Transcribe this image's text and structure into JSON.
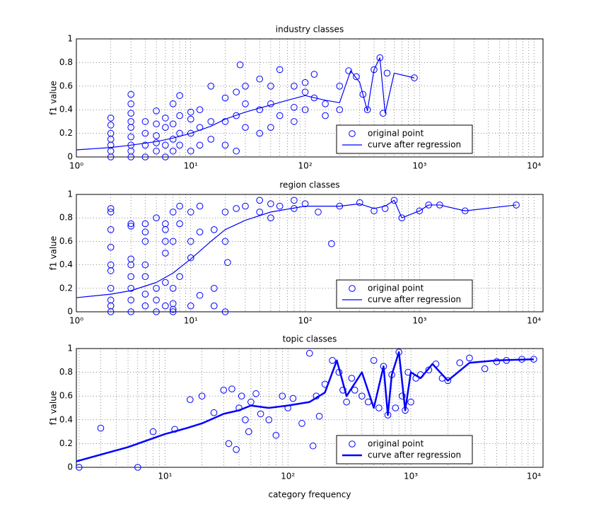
{
  "chart_data": [
    {
      "type": "scatter",
      "title": "industry classes",
      "y_label": "f1 value",
      "xscale": "log",
      "grid": true,
      "legend": "lower right",
      "xlim": [
        1,
        12000
      ],
      "ylim": [
        0,
        1
      ],
      "xticks": [
        {
          "value": 1,
          "label": "10⁰"
        },
        {
          "value": 10,
          "label": "10¹"
        },
        {
          "value": 100,
          "label": "10²"
        },
        {
          "value": 1000,
          "label": "10³"
        },
        {
          "value": 10000,
          "label": "10⁴"
        }
      ],
      "yticks": [
        0,
        0.2,
        0.4,
        0.6,
        0.8,
        1
      ],
      "series": [
        {
          "name": "original point",
          "color": "#0000ff",
          "mode": "markers",
          "x": [
            2,
            2,
            2,
            2,
            2,
            2,
            2,
            3,
            3,
            3,
            3,
            3,
            3,
            3,
            3,
            3,
            4,
            4,
            4,
            4,
            5,
            5,
            5,
            5,
            5,
            6,
            6,
            6,
            6,
            7,
            7,
            7,
            7,
            8,
            8,
            8,
            8,
            10,
            10,
            10,
            10,
            12,
            12,
            12,
            15,
            15,
            15,
            20,
            20,
            20,
            25,
            25,
            25,
            27,
            30,
            30,
            30,
            40,
            40,
            40,
            50,
            50,
            50,
            60,
            60,
            80,
            80,
            80,
            100,
            100,
            100,
            120,
            120,
            150,
            150,
            200,
            200,
            240,
            280,
            320,
            350,
            400,
            450,
            480,
            520,
            900
          ],
          "values": [
            0,
            0.05,
            0.1,
            0.15,
            0.2,
            0.27,
            0.33,
            0,
            0.05,
            0.1,
            0.17,
            0.25,
            0.3,
            0.37,
            0.45,
            0.53,
            0,
            0.1,
            0.2,
            0.3,
            0.05,
            0.12,
            0.18,
            0.28,
            0.39,
            0,
            0.1,
            0.25,
            0.33,
            0.05,
            0.15,
            0.28,
            0.45,
            0.1,
            0.2,
            0.35,
            0.52,
            0.05,
            0.2,
            0.32,
            0.38,
            0.1,
            0.25,
            0.4,
            0.6,
            0.3,
            0.15,
            0.5,
            0.1,
            0.3,
            0.05,
            0.35,
            0.55,
            0.78,
            0.6,
            0.45,
            0.25,
            0.66,
            0.4,
            0.2,
            0.6,
            0.25,
            0.45,
            0.74,
            0.35,
            0.42,
            0.6,
            0.3,
            0.55,
            0.4,
            0.63,
            0.7,
            0.5,
            0.45,
            0.35,
            0.4,
            0.6,
            0.73,
            0.68,
            0.53,
            0.4,
            0.74,
            0.84,
            0.37,
            0.71,
            0.67
          ]
        },
        {
          "name": "curve after regression",
          "color": "#0000ff",
          "mode": "line",
          "linewidth": 1.2,
          "x": [
            1,
            2,
            3,
            5,
            7,
            10,
            15,
            20,
            30,
            50,
            70,
            100,
            150,
            200,
            250,
            300,
            350,
            400,
            450,
            500,
            600,
            900
          ],
          "values": [
            0.06,
            0.08,
            0.1,
            0.13,
            0.16,
            0.2,
            0.26,
            0.32,
            0.38,
            0.44,
            0.48,
            0.52,
            0.48,
            0.46,
            0.73,
            0.63,
            0.39,
            0.74,
            0.84,
            0.37,
            0.71,
            0.67
          ]
        }
      ]
    },
    {
      "type": "scatter",
      "title": "region classes",
      "y_label": "f1 value",
      "xscale": "log",
      "grid": true,
      "legend": "lower right",
      "xlim": [
        1,
        12000
      ],
      "ylim": [
        0,
        1
      ],
      "xticks": [
        {
          "value": 1,
          "label": "10⁰"
        },
        {
          "value": 10,
          "label": "10¹"
        },
        {
          "value": 100,
          "label": "10²"
        },
        {
          "value": 1000,
          "label": "10³"
        },
        {
          "value": 10000,
          "label": "10⁴"
        }
      ],
      "yticks": [
        0,
        0.2,
        0.4,
        0.6,
        0.8,
        1
      ],
      "series": [
        {
          "name": "original point",
          "color": "#0000ff",
          "mode": "markers",
          "x": [
            2,
            2,
            2,
            2,
            2,
            2,
            2,
            2,
            2,
            2,
            3,
            3,
            3,
            3,
            3,
            3,
            3,
            3,
            4,
            4,
            4,
            4,
            4,
            4,
            4,
            5,
            5,
            5,
            5,
            6,
            6,
            6,
            6,
            6,
            6,
            7,
            7,
            7,
            7,
            7,
            7,
            8,
            8,
            8,
            10,
            10,
            10,
            10,
            12,
            12,
            12,
            16,
            16,
            16,
            20,
            20,
            20,
            21,
            25,
            30,
            40,
            40,
            50,
            50,
            60,
            80,
            80,
            100,
            130,
            170,
            200,
            300,
            400,
            500,
            600,
            700,
            1000,
            1200,
            1500,
            2500,
            7000
          ],
          "values": [
            0,
            0.05,
            0.1,
            0.2,
            0.35,
            0.4,
            0.55,
            0.7,
            0.85,
            0.88,
            0,
            0.1,
            0.2,
            0.3,
            0.4,
            0.45,
            0.73,
            0.75,
            0.05,
            0.15,
            0.3,
            0.4,
            0.6,
            0.68,
            0.75,
            0,
            0.1,
            0.2,
            0.8,
            0.05,
            0.25,
            0.5,
            0.6,
            0.7,
            0.75,
            0,
            0.02,
            0.07,
            0.2,
            0.6,
            0.85,
            0.3,
            0.9,
            0.75,
            0.05,
            0.46,
            0.6,
            0.85,
            0.14,
            0.68,
            0.9,
            0.05,
            0.2,
            0.7,
            0,
            0.6,
            0.85,
            0.42,
            0.88,
            0.9,
            0.95,
            0.85,
            0.92,
            0.8,
            0.9,
            0.88,
            0.95,
            0.92,
            0.85,
            0.58,
            0.9,
            0.93,
            0.86,
            0.88,
            0.95,
            0.8,
            0.86,
            0.91,
            0.91,
            0.86,
            0.91
          ]
        },
        {
          "name": "curve after regression",
          "color": "#0000ff",
          "mode": "line",
          "linewidth": 1.2,
          "x": [
            1,
            2,
            3,
            5,
            7,
            10,
            15,
            20,
            30,
            50,
            100,
            200,
            300,
            400,
            500,
            600,
            700,
            1000,
            1200,
            1500,
            2500,
            7000
          ],
          "values": [
            0.12,
            0.15,
            0.18,
            0.25,
            0.33,
            0.45,
            0.6,
            0.7,
            0.78,
            0.85,
            0.9,
            0.9,
            0.92,
            0.88,
            0.9,
            0.95,
            0.8,
            0.86,
            0.91,
            0.91,
            0.86,
            0.91
          ]
        }
      ]
    },
    {
      "type": "scatter",
      "title": "topic classes",
      "y_label": "f1 value",
      "x_label": "category frequency",
      "xscale": "log",
      "grid": true,
      "legend": "lower right",
      "xlim": [
        1.9,
        11900
      ],
      "ylim": [
        0,
        1
      ],
      "xticks": [
        {
          "value": 10,
          "label": "10¹"
        },
        {
          "value": 100,
          "label": "10²"
        },
        {
          "value": 1000,
          "label": "10³"
        },
        {
          "value": 10000,
          "label": "10⁴"
        }
      ],
      "yticks": [
        0,
        0.2,
        0.4,
        0.6,
        0.8,
        1
      ],
      "series": [
        {
          "name": "original point",
          "color": "#0000ff",
          "mode": "markers",
          "x": [
            2,
            3,
            6,
            8,
            12,
            16,
            20,
            25,
            30,
            33,
            35,
            38,
            40,
            42,
            45,
            48,
            50,
            55,
            60,
            70,
            80,
            90,
            100,
            110,
            130,
            150,
            160,
            170,
            180,
            200,
            230,
            260,
            280,
            300,
            330,
            350,
            400,
            450,
            500,
            550,
            600,
            650,
            700,
            750,
            800,
            850,
            900,
            950,
            1000,
            1100,
            1200,
            1400,
            1600,
            1800,
            2000,
            2500,
            3000,
            4000,
            5000,
            6000,
            8000,
            10000
          ],
          "values": [
            0,
            0.33,
            0,
            0.3,
            0.32,
            0.57,
            0.6,
            0.46,
            0.65,
            0.2,
            0.66,
            0.15,
            0.5,
            0.6,
            0.4,
            0.3,
            0.55,
            0.62,
            0.45,
            0.4,
            0.27,
            0.6,
            0.5,
            0.58,
            0.37,
            0.96,
            0.18,
            0.6,
            0.43,
            0.7,
            0.9,
            0.8,
            0.65,
            0.55,
            0.75,
            0.65,
            0.6,
            0.55,
            0.9,
            0.5,
            0.85,
            0.44,
            0.78,
            0.5,
            0.97,
            0.6,
            0.48,
            0.8,
            0.55,
            0.75,
            0.78,
            0.82,
            0.87,
            0.75,
            0.73,
            0.88,
            0.92,
            0.83,
            0.89,
            0.9,
            0.91,
            0.91
          ]
        },
        {
          "name": "curve after regression",
          "color": "#0000ff",
          "mode": "line",
          "linewidth": 2.5,
          "x": [
            1.9,
            5,
            10,
            15,
            20,
            30,
            40,
            50,
            70,
            100,
            150,
            200,
            250,
            300,
            400,
            500,
            600,
            650,
            700,
            800,
            900,
            1000,
            1200,
            1500,
            2000,
            3000,
            5000,
            10000
          ],
          "values": [
            0.05,
            0.17,
            0.28,
            0.33,
            0.37,
            0.45,
            0.48,
            0.52,
            0.5,
            0.52,
            0.55,
            0.63,
            0.9,
            0.6,
            0.8,
            0.5,
            0.85,
            0.44,
            0.78,
            0.97,
            0.48,
            0.8,
            0.75,
            0.87,
            0.73,
            0.88,
            0.9,
            0.91
          ]
        }
      ]
    }
  ]
}
